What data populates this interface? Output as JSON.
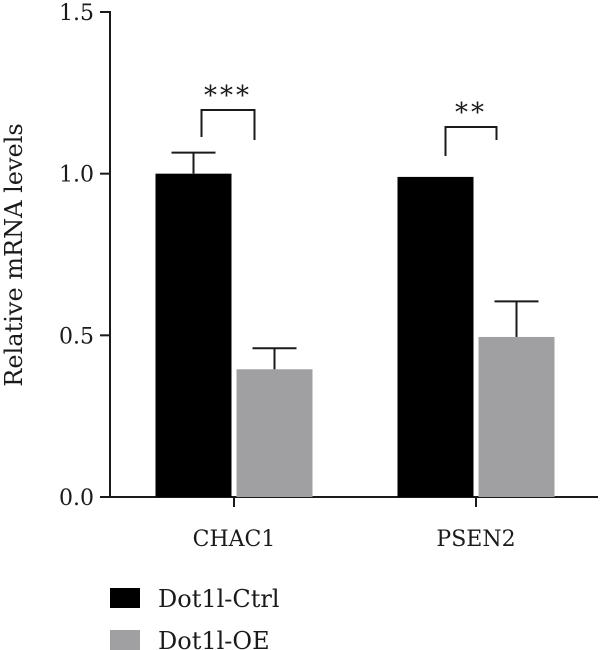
{
  "chart_data": {
    "type": "bar",
    "ylabel": "Relative mRNA levels",
    "ylim": [
      0,
      1.5
    ],
    "yticks": [
      "0.0",
      "0.5",
      "1.0",
      "1.5"
    ],
    "categories": [
      "CHAC1",
      "PSEN2"
    ],
    "series": [
      {
        "name": "Dot1l-Ctrl",
        "color": "#000000",
        "values": [
          1.0,
          0.99
        ],
        "errors": [
          0.065,
          0.0
        ]
      },
      {
        "name": "Dot1l-OE",
        "color": "#a0a0a2",
        "values": [
          0.395,
          0.495
        ],
        "errors": [
          0.065,
          0.11
        ]
      }
    ],
    "significance": [
      {
        "category": "CHAC1",
        "label": "***"
      },
      {
        "category": "PSEN2",
        "label": "**"
      }
    ],
    "legend_position": "bottom-left"
  }
}
